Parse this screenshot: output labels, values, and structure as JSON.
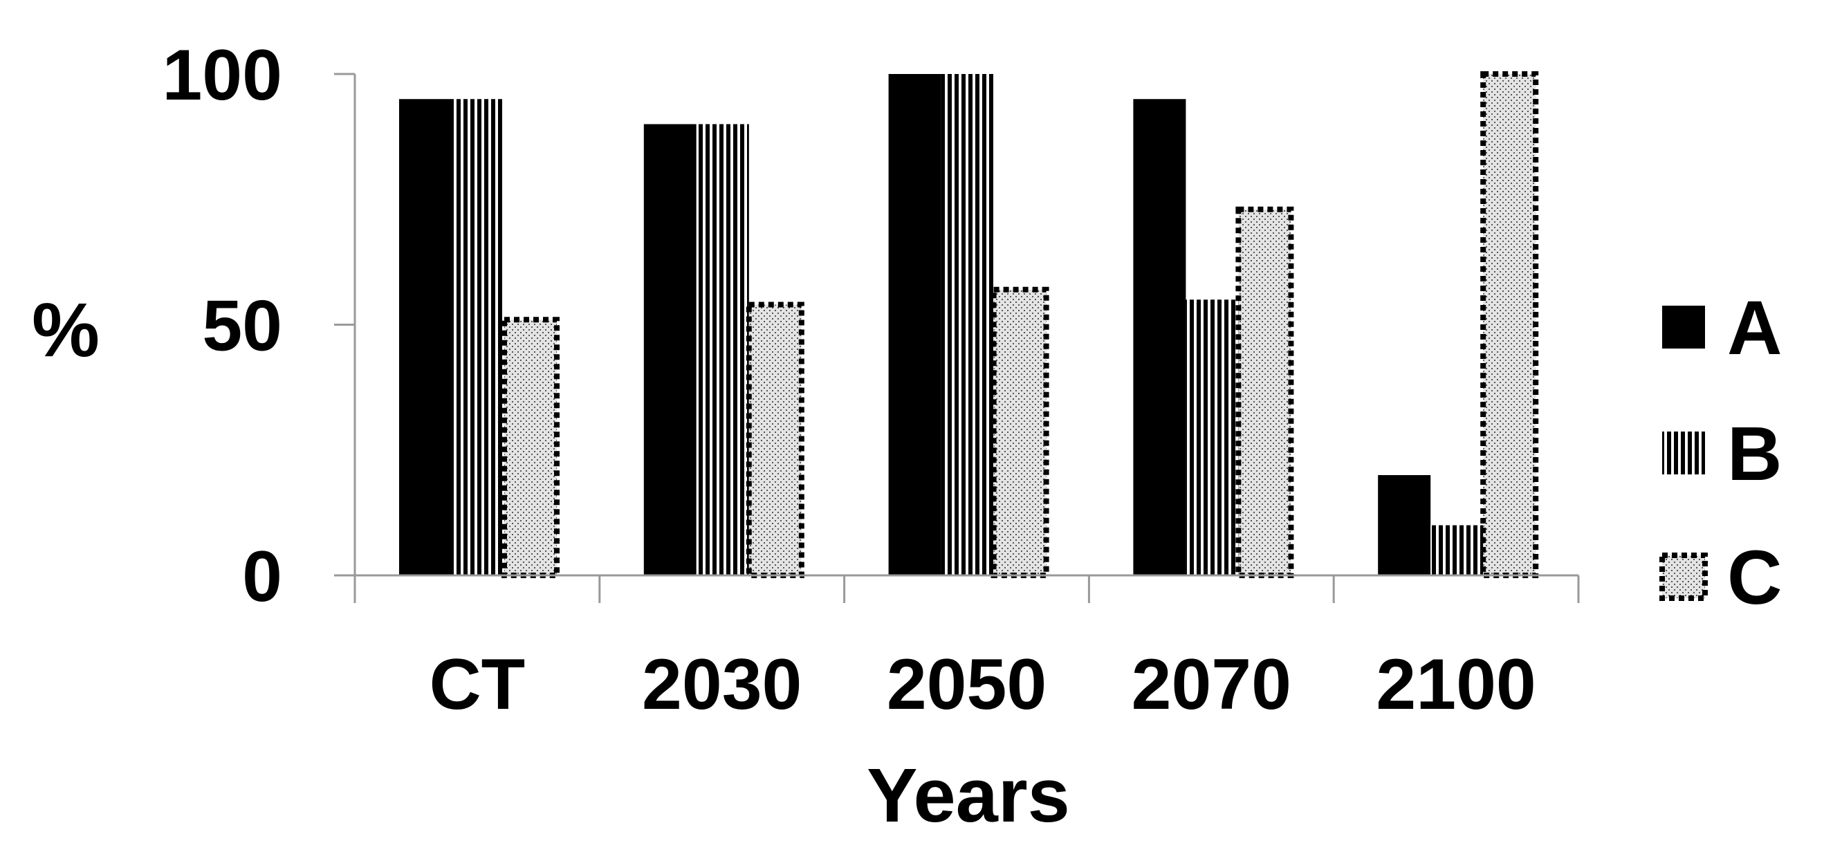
{
  "chart_data": {
    "type": "bar",
    "title": "",
    "xlabel": "Years",
    "ylabel": "%",
    "categories": [
      "CT",
      "2030",
      "2050",
      "2070",
      "2100"
    ],
    "series": [
      {
        "name": "A",
        "values": [
          95,
          90,
          100,
          95,
          20
        ],
        "pattern": "solid"
      },
      {
        "name": "B",
        "values": [
          95,
          90,
          100,
          55,
          10
        ],
        "pattern": "vertical-stripes"
      },
      {
        "name": "C",
        "values": [
          51,
          54,
          57,
          73,
          100
        ],
        "pattern": "dotted-fill-dashed-border"
      }
    ],
    "ylim": [
      0,
      100
    ],
    "yticks": [
      "0",
      "50",
      "100"
    ],
    "grid": false,
    "legend": "right",
    "colors": {
      "bar": "#000000",
      "background": "#ffffff",
      "axis": "#999999",
      "dot_fill": "#d9d9d9"
    }
  }
}
